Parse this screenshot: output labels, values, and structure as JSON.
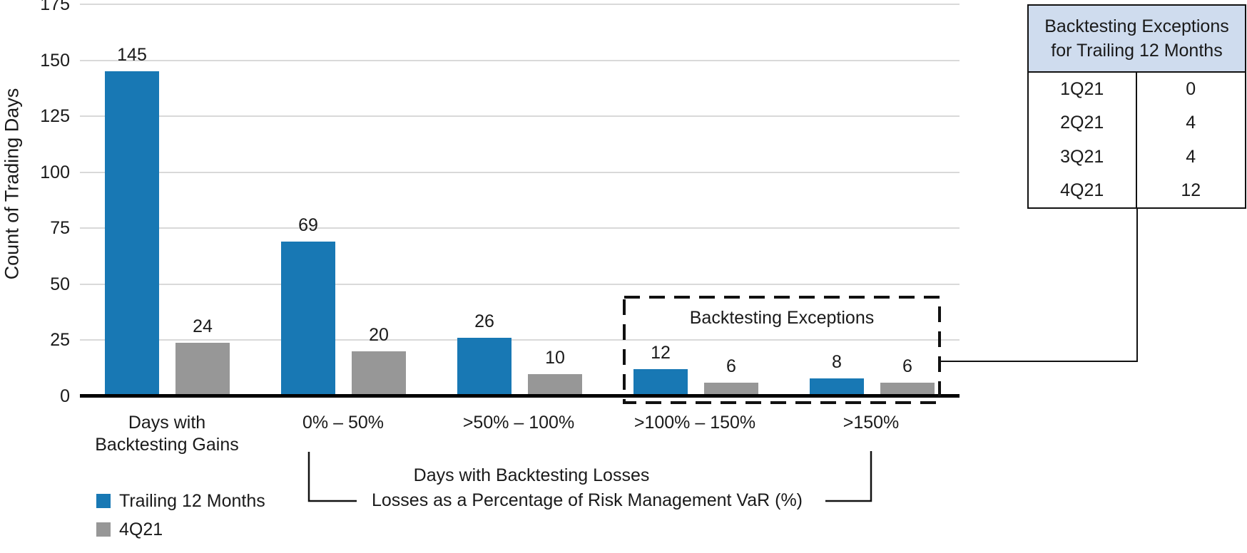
{
  "chart_data": {
    "type": "bar",
    "title": "",
    "ylabel": "Count of Trading Days",
    "xlabel": "",
    "ylim": [
      0,
      175
    ],
    "yticks": [
      0,
      25,
      50,
      75,
      100,
      125,
      150,
      175
    ],
    "grid": true,
    "legend_position": "bottom-left",
    "categories": [
      "Days with\nBacktesting Gains",
      "0% – 50%",
      ">50% – 100%",
      ">100% – 150%",
      ">150%"
    ],
    "series": [
      {
        "name": "Trailing 12 Months",
        "color": "#1878b4",
        "values": [
          145,
          69,
          26,
          12,
          8
        ]
      },
      {
        "name": "4Q21",
        "color": "#979797",
        "values": [
          24,
          20,
          10,
          6,
          6
        ]
      }
    ],
    "exceptions_box": {
      "label": "Backtesting Exceptions",
      "covers_categories": [
        ">100% – 150%",
        ">150%"
      ]
    },
    "x_group_annotation": {
      "line1": "Days with Backtesting Losses",
      "line2": "Losses as a Percentage of Risk Management VaR (%)"
    }
  },
  "exceptions_table": {
    "title_line1": "Backtesting Exceptions",
    "title_line2": "for Trailing 12 Months",
    "header_bg": "#cfdcee",
    "rows": [
      {
        "quarter": "1Q21",
        "count": "0"
      },
      {
        "quarter": "2Q21",
        "count": "4"
      },
      {
        "quarter": "3Q21",
        "count": "4"
      },
      {
        "quarter": "4Q21",
        "count": "12"
      }
    ]
  },
  "colors": {
    "axis": "#000000",
    "gridline": "#d9d9d9",
    "text": "#1a1a1a",
    "dashed_box": "#111111"
  }
}
